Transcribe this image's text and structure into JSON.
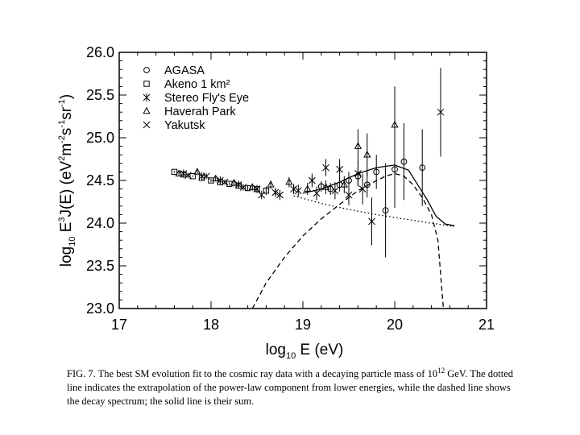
{
  "chart_data": {
    "type": "scatter",
    "title": "",
    "xlabel": "log10 E (eV)",
    "ylabel": "log10 E^3 J(E) (eV^2 m^-2 s^-1 sr^-1)",
    "xlim": [
      17,
      21
    ],
    "ylim": [
      23.0,
      26.0
    ],
    "x_ticks": [
      "17",
      "18",
      "19",
      "20",
      "21"
    ],
    "y_ticks": [
      "23.0",
      "23.5",
      "24.0",
      "24.5",
      "25.0",
      "25.5",
      "26.0"
    ],
    "legend_position": "top-left",
    "series": [
      {
        "name": "AGASA",
        "marker": "circle",
        "points": [
          {
            "x": 19.2,
            "y": 24.43,
            "err": 0.06
          },
          {
            "x": 19.3,
            "y": 24.4,
            "err": 0.07
          },
          {
            "x": 19.4,
            "y": 24.45,
            "err": 0.08
          },
          {
            "x": 19.5,
            "y": 24.5,
            "err": 0.1
          },
          {
            "x": 19.6,
            "y": 24.55,
            "err": 0.12
          },
          {
            "x": 19.7,
            "y": 24.45,
            "err": 0.15
          },
          {
            "x": 19.8,
            "y": 24.6,
            "err": 0.2
          },
          {
            "x": 19.9,
            "y": 24.15,
            "err": 0.55
          },
          {
            "x": 20.0,
            "y": 24.63,
            "err": 0.45
          },
          {
            "x": 20.1,
            "y": 24.72,
            "err": 0.45
          },
          {
            "x": 20.3,
            "y": 24.65,
            "err": 0.45
          }
        ]
      },
      {
        "name": "Akeno 1 km²",
        "marker": "square",
        "points": [
          {
            "x": 17.6,
            "y": 24.6,
            "err": 0.01
          },
          {
            "x": 17.7,
            "y": 24.57,
            "err": 0.01
          },
          {
            "x": 17.8,
            "y": 24.55,
            "err": 0.01
          },
          {
            "x": 17.9,
            "y": 24.53,
            "err": 0.02
          },
          {
            "x": 18.0,
            "y": 24.5,
            "err": 0.02
          },
          {
            "x": 18.1,
            "y": 24.48,
            "err": 0.02
          },
          {
            "x": 18.2,
            "y": 24.46,
            "err": 0.02
          },
          {
            "x": 18.3,
            "y": 24.44,
            "err": 0.03
          },
          {
            "x": 18.4,
            "y": 24.41,
            "err": 0.03
          },
          {
            "x": 18.5,
            "y": 24.4,
            "err": 0.04
          },
          {
            "x": 18.6,
            "y": 24.38,
            "err": 0.05
          }
        ]
      },
      {
        "name": "Stereo Fly's Eye",
        "marker": "asterisk",
        "points": [
          {
            "x": 17.7,
            "y": 24.58,
            "err": 0.03
          },
          {
            "x": 17.9,
            "y": 24.55,
            "err": 0.03
          },
          {
            "x": 18.1,
            "y": 24.5,
            "err": 0.03
          },
          {
            "x": 18.3,
            "y": 24.45,
            "err": 0.03
          },
          {
            "x": 18.5,
            "y": 24.4,
            "err": 0.04
          },
          {
            "x": 18.7,
            "y": 24.36,
            "err": 0.05
          },
          {
            "x": 18.9,
            "y": 24.4,
            "err": 0.06
          },
          {
            "x": 19.1,
            "y": 24.5,
            "err": 0.08
          },
          {
            "x": 19.25,
            "y": 24.65,
            "err": 0.1
          },
          {
            "x": 19.4,
            "y": 24.63,
            "err": 0.12
          },
          {
            "x": 19.6,
            "y": 24.58,
            "err": 0.15
          },
          {
            "x": 20.5,
            "y": 25.3,
            "err": 0.52
          }
        ]
      },
      {
        "name": "Haverah Park",
        "marker": "triangle",
        "points": [
          {
            "x": 17.65,
            "y": 24.58,
            "err": 0.03
          },
          {
            "x": 17.85,
            "y": 24.6,
            "err": 0.03
          },
          {
            "x": 18.05,
            "y": 24.52,
            "err": 0.03
          },
          {
            "x": 18.25,
            "y": 24.47,
            "err": 0.04
          },
          {
            "x": 18.45,
            "y": 24.42,
            "err": 0.04
          },
          {
            "x": 18.65,
            "y": 24.45,
            "err": 0.05
          },
          {
            "x": 18.85,
            "y": 24.48,
            "err": 0.06
          },
          {
            "x": 19.05,
            "y": 24.4,
            "err": 0.07
          },
          {
            "x": 19.25,
            "y": 24.42,
            "err": 0.08
          },
          {
            "x": 19.45,
            "y": 24.45,
            "err": 0.1
          },
          {
            "x": 19.6,
            "y": 24.9,
            "err": 0.2
          },
          {
            "x": 19.7,
            "y": 24.8,
            "err": 0.25
          },
          {
            "x": 20.0,
            "y": 25.15,
            "err": 0.45
          }
        ]
      },
      {
        "name": "Yakutsk",
        "marker": "x",
        "points": [
          {
            "x": 17.75,
            "y": 24.56,
            "err": 0.03
          },
          {
            "x": 17.95,
            "y": 24.55,
            "err": 0.03
          },
          {
            "x": 18.15,
            "y": 24.48,
            "err": 0.03
          },
          {
            "x": 18.35,
            "y": 24.42,
            "err": 0.04
          },
          {
            "x": 18.55,
            "y": 24.33,
            "err": 0.05
          },
          {
            "x": 18.75,
            "y": 24.33,
            "err": 0.06
          },
          {
            "x": 18.95,
            "y": 24.38,
            "err": 0.07
          },
          {
            "x": 19.15,
            "y": 24.35,
            "err": 0.08
          },
          {
            "x": 19.35,
            "y": 24.38,
            "err": 0.1
          },
          {
            "x": 19.5,
            "y": 24.33,
            "err": 0.12
          },
          {
            "x": 19.65,
            "y": 24.4,
            "err": 0.18
          },
          {
            "x": 19.75,
            "y": 24.02,
            "err": 0.28
          }
        ]
      }
    ],
    "curves": [
      {
        "name": "power-law extrapolation",
        "style": "dotted",
        "x": [
          18.9,
          19.2,
          19.5,
          19.8,
          20.1,
          20.4,
          20.65
        ],
        "y": [
          24.32,
          24.23,
          24.16,
          24.1,
          24.05,
          24.0,
          23.96
        ]
      },
      {
        "name": "decay spectrum",
        "style": "dashed",
        "x": [
          18.45,
          18.6,
          18.8,
          19.0,
          19.2,
          19.4,
          19.6,
          19.75,
          19.9,
          20.0,
          20.1,
          20.2,
          20.3,
          20.4,
          20.47,
          20.5,
          20.53
        ],
        "y": [
          23.0,
          23.3,
          23.6,
          23.85,
          24.05,
          24.22,
          24.38,
          24.47,
          24.55,
          24.58,
          24.55,
          24.45,
          24.3,
          24.1,
          23.8,
          23.4,
          23.0
        ]
      },
      {
        "name": "sum",
        "style": "solid",
        "x": [
          19.0,
          19.2,
          19.4,
          19.6,
          19.8,
          20.0,
          20.15,
          20.25,
          20.35,
          20.45,
          20.55,
          20.65
        ],
        "y": [
          24.35,
          24.4,
          24.48,
          24.58,
          24.65,
          24.68,
          24.62,
          24.45,
          24.28,
          24.08,
          23.99,
          23.97
        ]
      }
    ]
  },
  "caption": {
    "part1": "FIG. 7.  The best SM evolution fit to the cosmic ray data with a decaying particle mass of 10",
    "exponent": "12",
    "part2": " GeV.  The dotted line indicates the extrapolation of the power-law component from lower energies, while the dashed line shows the decay spectrum; the solid line is their sum."
  }
}
